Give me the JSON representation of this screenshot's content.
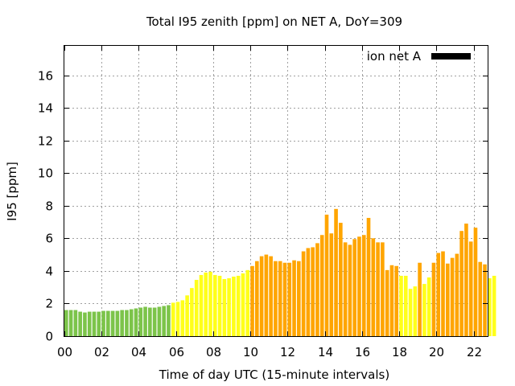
{
  "chart_data": {
    "type": "bar",
    "title": "Total I95 zenith [ppm] on NET A, DoY=309",
    "xlabel": "Time of day UTC (15-minute intervals)",
    "ylabel": "I95 [ppm]",
    "ylim": [
      0,
      17.8
    ],
    "xlim": [
      0,
      22.75
    ],
    "yticks": [
      0,
      2,
      4,
      6,
      8,
      10,
      12,
      14,
      16
    ],
    "xticks": [
      0,
      2,
      4,
      6,
      8,
      10,
      12,
      14,
      16,
      18,
      20,
      22
    ],
    "xtick_labels": [
      "00",
      "02",
      "04",
      "06",
      "08",
      "10",
      "12",
      "14",
      "16",
      "18",
      "20",
      "22"
    ],
    "grid": true,
    "legend": {
      "label": "ion net A",
      "color": "#000000",
      "position": "top-right"
    },
    "interval_hours": 0.25,
    "colors": {
      "green": "#7cc44a",
      "yellow": "#ffff1a",
      "orange": "#ffa500"
    },
    "values": [
      1.6,
      1.6,
      1.6,
      1.5,
      1.45,
      1.5,
      1.5,
      1.5,
      1.55,
      1.55,
      1.55,
      1.55,
      1.6,
      1.6,
      1.65,
      1.7,
      1.75,
      1.8,
      1.75,
      1.75,
      1.8,
      1.85,
      1.9,
      2.05,
      2.1,
      2.2,
      2.5,
      2.95,
      3.45,
      3.75,
      3.9,
      3.95,
      3.75,
      3.7,
      3.5,
      3.55,
      3.65,
      3.7,
      3.85,
      4.05,
      4.3,
      4.6,
      4.9,
      5.0,
      4.9,
      4.6,
      4.6,
      4.5,
      4.5,
      4.65,
      4.6,
      5.2,
      5.4,
      5.45,
      5.7,
      6.2,
      7.45,
      6.3,
      7.8,
      6.95,
      5.75,
      5.6,
      5.95,
      6.1,
      6.2,
      7.25,
      6.0,
      5.75,
      5.75,
      4.05,
      4.35,
      4.3,
      3.7,
      3.7,
      2.9,
      3.05,
      4.5,
      3.2,
      3.6,
      4.5,
      5.1,
      5.2,
      4.45,
      4.8,
      5.05,
      6.45,
      6.9,
      5.8,
      6.65,
      4.55,
      4.4,
      3.55,
      3.7
    ],
    "series_colors": [
      "green",
      "green",
      "green",
      "green",
      "green",
      "green",
      "green",
      "green",
      "green",
      "green",
      "green",
      "green",
      "green",
      "green",
      "green",
      "green",
      "green",
      "green",
      "green",
      "green",
      "green",
      "green",
      "green",
      "yellow",
      "yellow",
      "yellow",
      "yellow",
      "yellow",
      "yellow",
      "yellow",
      "yellow",
      "yellow",
      "yellow",
      "yellow",
      "yellow",
      "yellow",
      "yellow",
      "yellow",
      "yellow",
      "yellow",
      "orange",
      "orange",
      "orange",
      "orange",
      "orange",
      "orange",
      "orange",
      "orange",
      "orange",
      "orange",
      "orange",
      "orange",
      "orange",
      "orange",
      "orange",
      "orange",
      "orange",
      "orange",
      "orange",
      "orange",
      "orange",
      "orange",
      "orange",
      "orange",
      "orange",
      "orange",
      "orange",
      "orange",
      "orange",
      "orange",
      "orange",
      "orange",
      "yellow",
      "yellow",
      "yellow",
      "yellow",
      "orange",
      "yellow",
      "yellow",
      "orange",
      "orange",
      "orange",
      "orange",
      "orange",
      "orange",
      "orange",
      "orange",
      "orange",
      "orange",
      "orange",
      "orange",
      "yellow",
      "yellow"
    ]
  }
}
